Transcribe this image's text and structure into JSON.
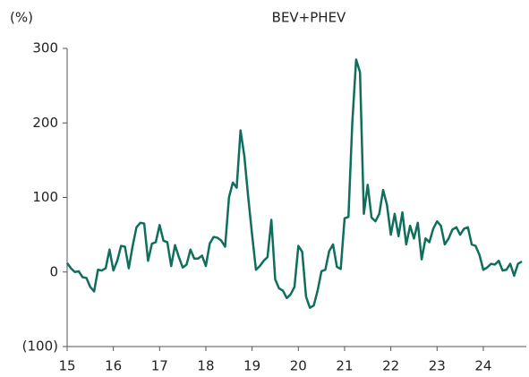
{
  "chart_data": {
    "type": "line",
    "title": "BEV+PHEV",
    "y_label": "(%)",
    "categories": [
      "15",
      null,
      null,
      null,
      null,
      null,
      null,
      null,
      null,
      null,
      null,
      null,
      "16",
      null,
      null,
      null,
      null,
      null,
      null,
      null,
      null,
      null,
      null,
      null,
      "17",
      null,
      null,
      null,
      null,
      null,
      null,
      null,
      null,
      null,
      null,
      null,
      "18",
      null,
      null,
      null,
      null,
      null,
      null,
      null,
      null,
      null,
      null,
      null,
      "19",
      null,
      null,
      null,
      null,
      null,
      null,
      null,
      null,
      null,
      null,
      null,
      "20",
      null,
      null,
      null,
      null,
      null,
      null,
      null,
      null,
      null,
      null,
      null,
      "21",
      null,
      null,
      null,
      null,
      null,
      null,
      null,
      null,
      null,
      null,
      null,
      "22",
      null,
      null,
      null,
      null,
      null,
      null,
      null,
      null,
      null,
      null,
      null,
      "23",
      null,
      null,
      null,
      null,
      null,
      null,
      null,
      null,
      null,
      null,
      null,
      "24",
      null,
      null,
      null,
      null,
      null,
      null,
      null,
      null,
      null,
      null
    ],
    "series": [
      {
        "name": "BEV+PHEV",
        "color": "#0f6e5c",
        "values": [
          12,
          5,
          0,
          1,
          -7,
          -8,
          -20,
          -26,
          3,
          2,
          5,
          30,
          2,
          15,
          35,
          34,
          5,
          35,
          60,
          66,
          65,
          15,
          38,
          40,
          63,
          42,
          40,
          8,
          36,
          20,
          6,
          10,
          30,
          18,
          18,
          22,
          8,
          38,
          47,
          46,
          42,
          34,
          100,
          120,
          113,
          190,
          155,
          100,
          50,
          3,
          8,
          15,
          20,
          70,
          -10,
          -22,
          -25,
          -35,
          -30,
          -20,
          35,
          27,
          -33,
          -48,
          -45,
          -25,
          1,
          3,
          28,
          37,
          7,
          4,
          72,
          74,
          200,
          285,
          268,
          78,
          117,
          73,
          68,
          78,
          110,
          90,
          50,
          78,
          48,
          80,
          37,
          62,
          45,
          66,
          17,
          45,
          40,
          58,
          68,
          62,
          37,
          45,
          57,
          60,
          50,
          58,
          60,
          37,
          35,
          23,
          3,
          6,
          11,
          10,
          15,
          2,
          3,
          11,
          -5,
          11,
          14
        ]
      }
    ],
    "ylim": [
      -100,
      300
    ],
    "yticks": [
      {
        "value": -100,
        "label": "(100)"
      },
      0,
      100,
      200,
      300
    ]
  }
}
